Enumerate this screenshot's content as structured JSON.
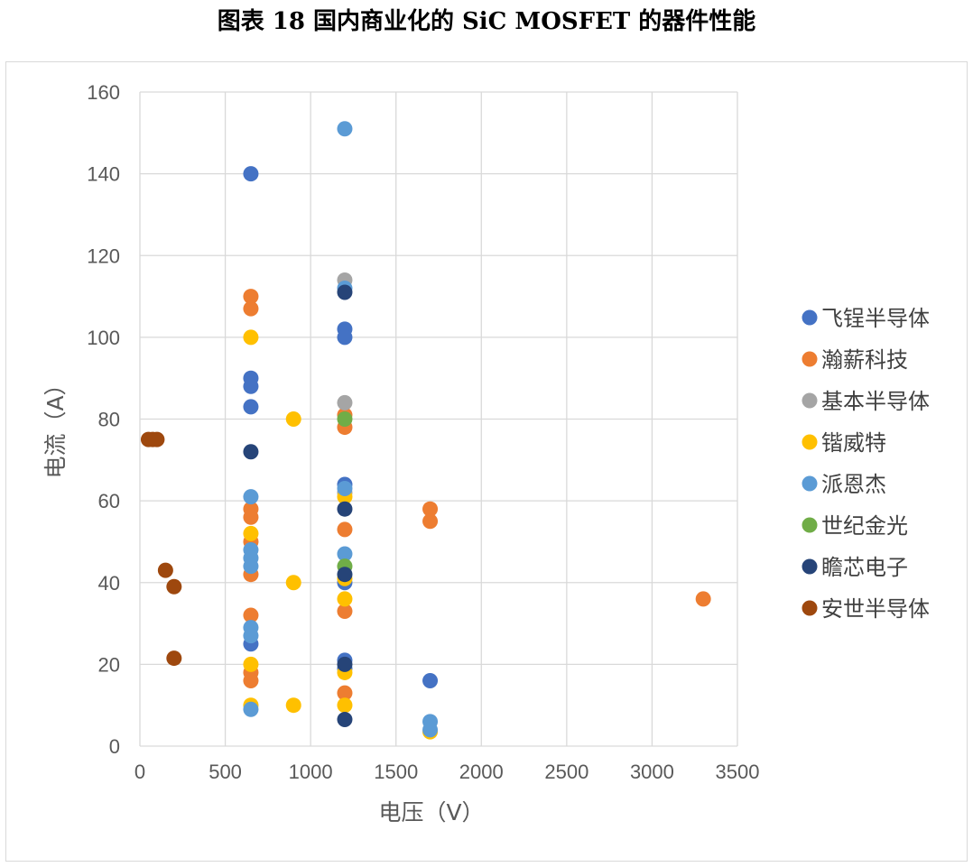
{
  "chart_data": {
    "type": "scatter",
    "title": "图表 18 国内商业化的 SiC MOSFET 的器件性能",
    "xlabel": "电压（V）",
    "ylabel": "电流（A）",
    "xlim": [
      0,
      3500
    ],
    "ylim": [
      0,
      160
    ],
    "x_ticks": [
      "0",
      "500",
      "1000",
      "1500",
      "2000",
      "2500",
      "3000",
      "3500"
    ],
    "y_ticks": [
      "0",
      "20",
      "40",
      "60",
      "80",
      "100",
      "120",
      "140",
      "160"
    ],
    "grid": true,
    "legend_position": "right",
    "series": [
      {
        "name": "飞锃半导体",
        "color": "#4472C4",
        "points": [
          [
            650,
            140
          ],
          [
            650,
            90
          ],
          [
            650,
            88
          ],
          [
            650,
            83
          ],
          [
            650,
            25
          ],
          [
            1200,
            102
          ],
          [
            1200,
            100
          ],
          [
            1200,
            64
          ],
          [
            1200,
            40
          ],
          [
            1200,
            21
          ],
          [
            1200,
            19
          ],
          [
            1700,
            16
          ]
        ]
      },
      {
        "name": "瀚薪科技",
        "color": "#ED7D31",
        "points": [
          [
            650,
            110
          ],
          [
            650,
            107
          ],
          [
            650,
            58
          ],
          [
            650,
            56
          ],
          [
            650,
            50
          ],
          [
            650,
            42
          ],
          [
            650,
            32
          ],
          [
            650,
            18
          ],
          [
            650,
            16
          ],
          [
            1200,
            81
          ],
          [
            1200,
            78
          ],
          [
            1200,
            53
          ],
          [
            1200,
            33
          ],
          [
            1200,
            13
          ],
          [
            1700,
            58
          ],
          [
            1700,
            55
          ],
          [
            3300,
            36
          ]
        ]
      },
      {
        "name": "基本半导体",
        "color": "#A5A5A5",
        "points": [
          [
            1200,
            114
          ],
          [
            1200,
            84
          ],
          [
            1200,
            62
          ]
        ]
      },
      {
        "name": "锴威特",
        "color": "#FFC000",
        "points": [
          [
            650,
            100
          ],
          [
            650,
            52
          ],
          [
            650,
            20
          ],
          [
            650,
            10
          ],
          [
            900,
            80
          ],
          [
            900,
            40
          ],
          [
            900,
            10
          ],
          [
            1200,
            61
          ],
          [
            1200,
            41
          ],
          [
            1200,
            36
          ],
          [
            1200,
            18
          ],
          [
            1200,
            10
          ],
          [
            1700,
            3.5
          ]
        ]
      },
      {
        "name": "派恩杰",
        "color": "#5B9BD5",
        "points": [
          [
            650,
            61
          ],
          [
            650,
            48
          ],
          [
            650,
            46
          ],
          [
            650,
            44
          ],
          [
            650,
            29
          ],
          [
            650,
            27
          ],
          [
            650,
            9
          ],
          [
            1200,
            151
          ],
          [
            1200,
            112
          ],
          [
            1200,
            63
          ],
          [
            1200,
            47
          ],
          [
            1700,
            6
          ],
          [
            1700,
            4
          ]
        ]
      },
      {
        "name": "世纪金光",
        "color": "#70AD47",
        "points": [
          [
            1200,
            80
          ],
          [
            1200,
            44
          ]
        ]
      },
      {
        "name": "瞻芯电子",
        "color": "#264478",
        "points": [
          [
            650,
            72
          ],
          [
            1200,
            111
          ],
          [
            1200,
            58
          ],
          [
            1200,
            42
          ],
          [
            1200,
            20
          ],
          [
            1200,
            6.5
          ]
        ]
      },
      {
        "name": "安世半导体",
        "color": "#9E480E",
        "points": [
          [
            50,
            75
          ],
          [
            75,
            75
          ],
          [
            100,
            75
          ],
          [
            150,
            43
          ],
          [
            200,
            39
          ],
          [
            200,
            21.5
          ]
        ]
      }
    ]
  }
}
